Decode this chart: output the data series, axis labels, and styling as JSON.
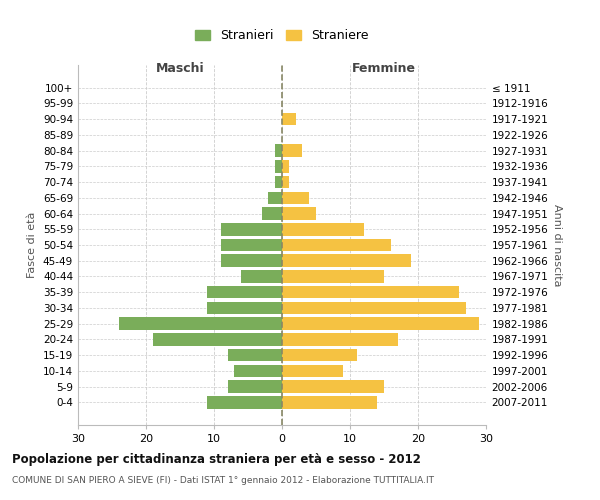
{
  "age_groups_bottom_to_top": [
    "0-4",
    "5-9",
    "10-14",
    "15-19",
    "20-24",
    "25-29",
    "30-34",
    "35-39",
    "40-44",
    "45-49",
    "50-54",
    "55-59",
    "60-64",
    "65-69",
    "70-74",
    "75-79",
    "80-84",
    "85-89",
    "90-94",
    "95-99",
    "100+"
  ],
  "birth_years_bottom_to_top": [
    "2007-2011",
    "2002-2006",
    "1997-2001",
    "1992-1996",
    "1987-1991",
    "1982-1986",
    "1977-1981",
    "1972-1976",
    "1967-1971",
    "1962-1966",
    "1957-1961",
    "1952-1956",
    "1947-1951",
    "1942-1946",
    "1937-1941",
    "1932-1936",
    "1927-1931",
    "1922-1926",
    "1917-1921",
    "1912-1916",
    "≤ 1911"
  ],
  "males_bottom_to_top": [
    11,
    8,
    7,
    8,
    19,
    24,
    11,
    11,
    6,
    9,
    9,
    9,
    3,
    2,
    1,
    1,
    1,
    0,
    0,
    0,
    0
  ],
  "females_bottom_to_top": [
    14,
    15,
    9,
    11,
    17,
    29,
    27,
    26,
    15,
    19,
    16,
    12,
    5,
    4,
    1,
    1,
    3,
    0,
    2,
    0,
    0
  ],
  "male_color": "#7aad5a",
  "female_color": "#f5c242",
  "background_color": "#ffffff",
  "grid_color": "#cccccc",
  "title": "Popolazione per cittadinanza straniera per età e sesso - 2012",
  "subtitle": "COMUNE DI SAN PIERO A SIEVE (FI) - Dati ISTAT 1° gennaio 2012 - Elaborazione TUTTITALIA.IT",
  "ylabel_left": "Fasce di età",
  "ylabel_right": "Anni di nascita",
  "xlabel_left": "Maschi",
  "xlabel_right": "Femmine",
  "legend_stranieri": "Stranieri",
  "legend_straniere": "Straniere",
  "xlim": 30
}
